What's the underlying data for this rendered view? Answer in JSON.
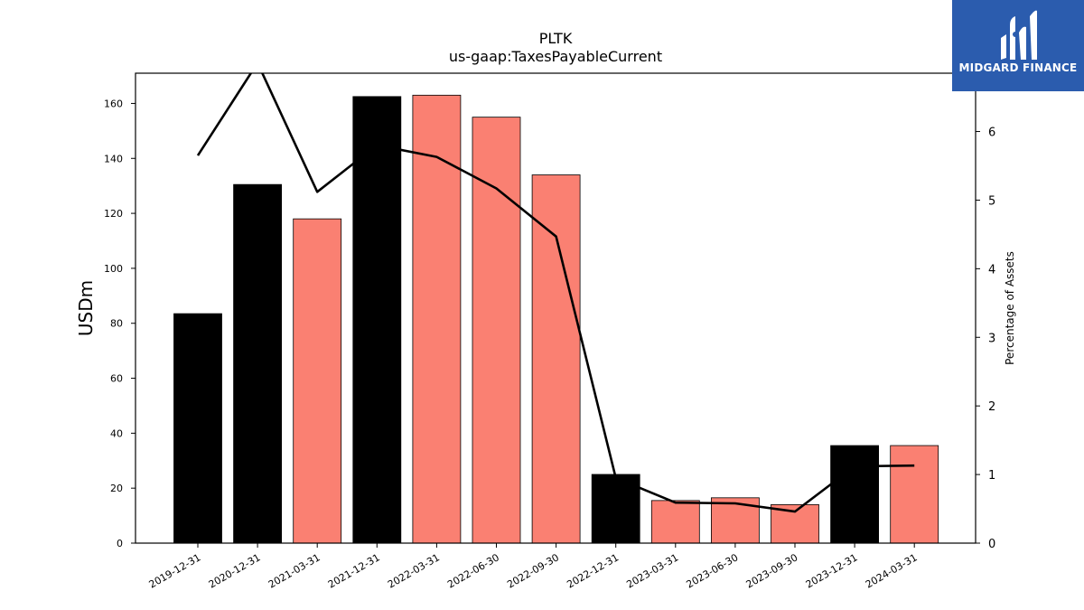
{
  "chart_data": {
    "type": "bar",
    "title": "PLTK",
    "subtitle": "us-gaap:TaxesPayableCurrent",
    "ylabel": "USDm",
    "y2label": "Percentage of Assets",
    "categories": [
      "2019-12-31",
      "2020-12-31",
      "2021-03-31",
      "2021-12-31",
      "2022-03-31",
      "2022-06-30",
      "2022-09-30",
      "2022-12-31",
      "2023-03-31",
      "2023-06-30",
      "2023-09-30",
      "2023-12-31",
      "2024-03-31"
    ],
    "series": [
      {
        "values": [
          83.5,
          130.5,
          118,
          162.5,
          163,
          155,
          134,
          25,
          15.5,
          16.5,
          14,
          35.5,
          35.5
        ],
        "colors": [
          "#000000",
          "#000000",
          "#fa8072",
          "#000000",
          "#fa8072",
          "#fa8072",
          "#fa8072",
          "#000000",
          "#fa8072",
          "#fa8072",
          "#fa8072",
          "#000000",
          "#fa8072"
        ]
      },
      {
        "type": "line",
        "axis": "right",
        "color": "#000000",
        "values": [
          5.65,
          7.0,
          5.12,
          5.8,
          5.63,
          5.17,
          4.47,
          0.95,
          0.59,
          0.58,
          0.46,
          1.12,
          1.13
        ]
      }
    ],
    "ylim": [
      0,
      171
    ],
    "y2lim": [
      0,
      6.85
    ],
    "yticks": [
      0,
      20,
      40,
      60,
      80,
      100,
      120,
      140,
      160
    ],
    "y2ticks": [
      0,
      1,
      2,
      3,
      4,
      5,
      6
    ],
    "grid": false,
    "legend": "none"
  },
  "logo": {
    "text": "MIDGARD FINANCE",
    "background": "#2b5cae",
    "icon": "midgard-logo-icon"
  }
}
